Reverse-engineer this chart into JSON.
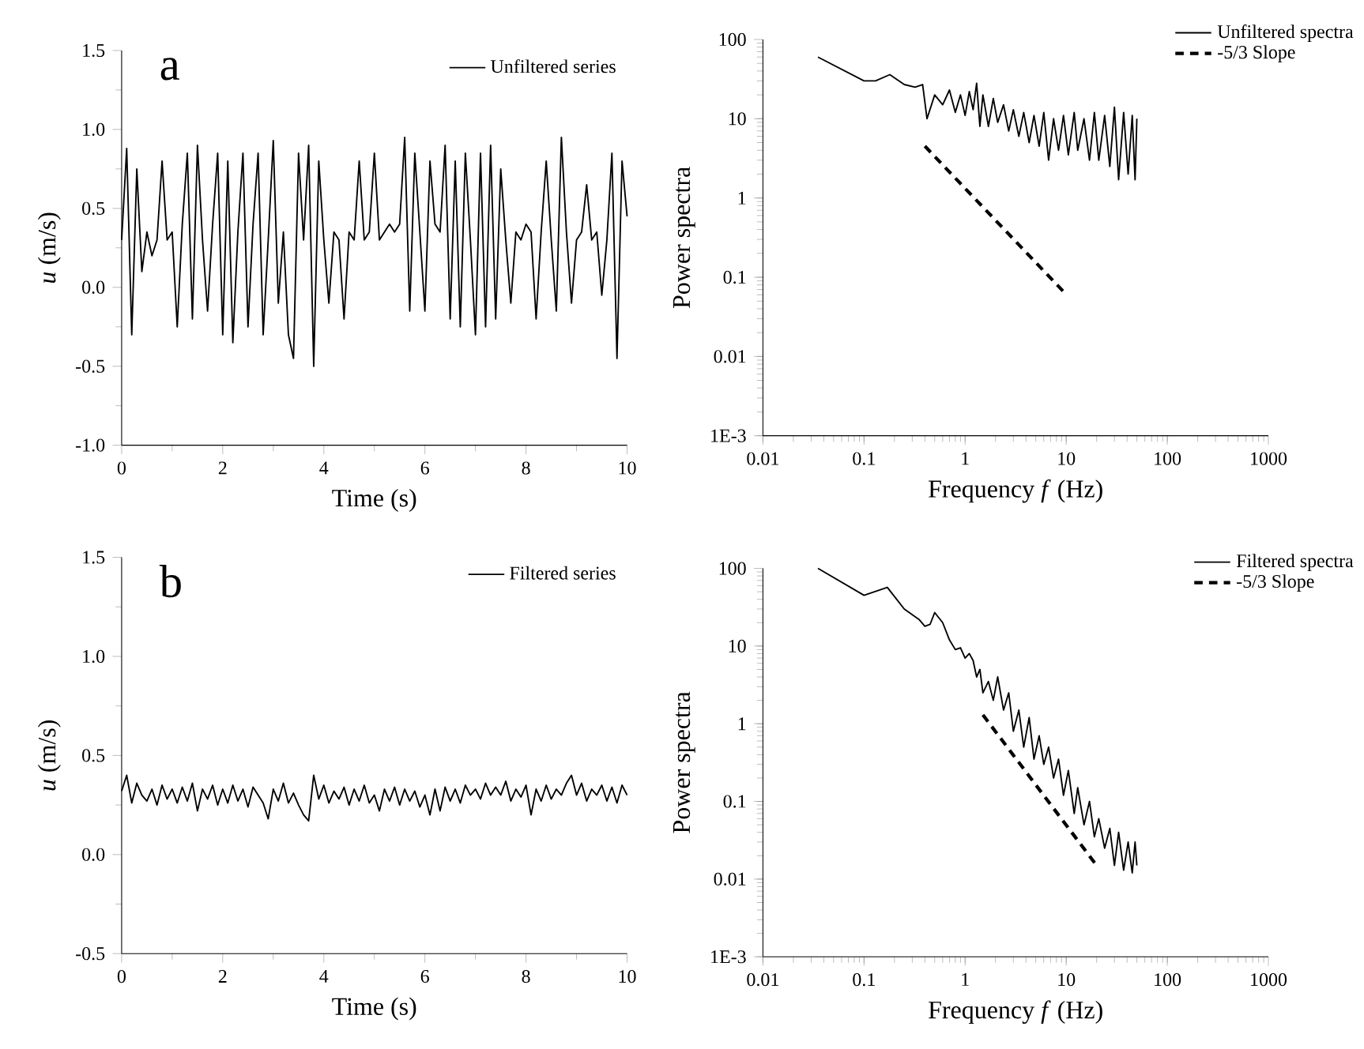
{
  "chart_data": [
    {
      "type": "line",
      "xlabel": "Time (s)",
      "ylabel": "*u* (m/s)",
      "annotations": [
        "a"
      ],
      "legend": "top right",
      "xlim": [
        0,
        10
      ],
      "ylim": [
        -1,
        1.5
      ],
      "xticks": [
        0,
        2,
        4,
        6,
        8,
        10
      ],
      "yticks": [
        {
          "value": -1,
          "label": "-1.0"
        },
        {
          "value": -0.5,
          "label": "-0.5"
        },
        {
          "value": 0,
          "label": "0.0"
        },
        {
          "value": 0.5,
          "label": "0.5"
        },
        {
          "value": 1,
          "label": "1.0"
        },
        {
          "value": 1.5,
          "label": "1.5"
        }
      ],
      "x": [
        0,
        0.1,
        0.2,
        0.3,
        0.4,
        0.5,
        0.6,
        0.7,
        0.8,
        0.9,
        1,
        1.1,
        1.2,
        1.3,
        1.4,
        1.5,
        1.6,
        1.7,
        1.8,
        1.9,
        2,
        2.1,
        2.2,
        2.3,
        2.4,
        2.5,
        2.6,
        2.7,
        2.8,
        2.9,
        3,
        3.1,
        3.2,
        3.3,
        3.4,
        3.5,
        3.6,
        3.7,
        3.8,
        3.9,
        4,
        4.1,
        4.2,
        4.3,
        4.4,
        4.5,
        4.6,
        4.7,
        4.8,
        4.9,
        5,
        5.1,
        5.2,
        5.3,
        5.4,
        5.5,
        5.6,
        5.7,
        5.8,
        5.9,
        6,
        6.1,
        6.2,
        6.3,
        6.4,
        6.5,
        6.6,
        6.7,
        6.8,
        6.9,
        7,
        7.1,
        7.2,
        7.3,
        7.4,
        7.5,
        7.6,
        7.7,
        7.8,
        7.9,
        8,
        8.1,
        8.2,
        8.3,
        8.4,
        8.5,
        8.6,
        8.7,
        8.8,
        8.9,
        9,
        9.1,
        9.2,
        9.3,
        9.4,
        9.5,
        9.6,
        9.7,
        9.8,
        9.9,
        10
      ],
      "series": [
        {
          "name": "Unfiltered series",
          "color": "#000000",
          "values": [
            0.3,
            0.88,
            -0.3,
            0.75,
            0.1,
            0.35,
            0.2,
            0.3,
            0.8,
            0.3,
            0.35,
            -0.25,
            0.4,
            0.85,
            -0.2,
            0.9,
            0.3,
            -0.15,
            0.4,
            0.85,
            -0.3,
            0.8,
            -0.35,
            0.35,
            0.85,
            -0.25,
            0.4,
            0.85,
            -0.3,
            0.3,
            0.93,
            -0.1,
            0.35,
            -0.3,
            -0.45,
            0.85,
            0.3,
            0.9,
            -0.5,
            0.8,
            0.3,
            -0.1,
            0.35,
            0.3,
            -0.2,
            0.35,
            0.3,
            0.8,
            0.3,
            0.35,
            0.85,
            0.3,
            0.35,
            0.4,
            0.35,
            0.4,
            0.95,
            -0.15,
            0.85,
            0.35,
            -0.15,
            0.8,
            0.4,
            0.35,
            0.9,
            -0.2,
            0.8,
            -0.25,
            0.85,
            0.3,
            -0.3,
            0.85,
            -0.25,
            0.9,
            -0.2,
            0.75,
            0.3,
            -0.1,
            0.35,
            0.3,
            0.4,
            0.35,
            -0.2,
            0.35,
            0.8,
            0.3,
            -0.15,
            0.95,
            0.35,
            -0.1,
            0.3,
            0.35,
            0.65,
            0.3,
            0.35,
            -0.05,
            0.3,
            0.85,
            -0.45,
            0.8,
            0.45
          ]
        }
      ]
    },
    {
      "type": "line",
      "xlabel": "Frequency *f*  (Hz)",
      "ylabel": "Power spectra",
      "legend": "top right",
      "log": "xy",
      "xlim": [
        0.01,
        1000
      ],
      "ylim": [
        0.001,
        100
      ],
      "xticks": [
        0.01,
        0.1,
        1,
        10,
        100,
        1000
      ],
      "yticks": [
        {
          "value": 0.001,
          "label": "1E-3"
        },
        0.01,
        0.1,
        1,
        10,
        100
      ],
      "series": [
        {
          "name": "Unfiltered spectra",
          "color": "#000000",
          "x": [
            0.035,
            0.1,
            0.13,
            0.18,
            0.25,
            0.32,
            0.38,
            0.42,
            0.5,
            0.6,
            0.7,
            0.8,
            0.9,
            1.0,
            1.1,
            1.2,
            1.3,
            1.4,
            1.5,
            1.7,
            1.9,
            2.1,
            2.4,
            2.7,
            3.0,
            3.4,
            3.8,
            4.3,
            4.8,
            5.4,
            6,
            6.7,
            7.5,
            8.4,
            9.4,
            10.5,
            12,
            13,
            15,
            17,
            19,
            21,
            24,
            27,
            30,
            33,
            37,
            41,
            45,
            48,
            50
          ],
          "values": [
            60,
            30,
            30,
            36,
            27,
            25,
            27,
            10,
            20,
            15,
            23,
            12,
            20,
            11,
            22,
            13,
            28,
            8,
            20,
            8,
            18,
            9,
            15,
            7,
            13,
            6,
            12,
            5,
            11,
            4.5,
            12,
            3,
            10,
            4,
            11,
            3.5,
            12,
            4,
            10,
            3,
            12,
            3,
            11,
            2.5,
            14,
            1.7,
            12,
            2,
            11,
            1.7,
            10
          ]
        },
        {
          "name": "-5/3 Slope",
          "color": "#000000",
          "line_style": "dashed",
          "x": [
            0.4,
            9.5
          ],
          "values": [
            4.5,
            0.065
          ]
        }
      ]
    },
    {
      "type": "line",
      "xlabel": "Time (s)",
      "ylabel": "*u* (m/s)",
      "annotations": [
        "b"
      ],
      "legend": "top right",
      "xlim": [
        0,
        10
      ],
      "ylim": [
        -0.5,
        1.5
      ],
      "xticks": [
        0,
        2,
        4,
        6,
        8,
        10
      ],
      "yticks": [
        {
          "value": -0.5,
          "label": "-0.5"
        },
        {
          "value": 0,
          "label": "0.0"
        },
        {
          "value": 0.5,
          "label": "0.5"
        },
        {
          "value": 1,
          "label": "1.0"
        },
        {
          "value": 1.5,
          "label": "1.5"
        }
      ],
      "x": [
        0,
        0.1,
        0.2,
        0.3,
        0.4,
        0.5,
        0.6,
        0.7,
        0.8,
        0.9,
        1,
        1.1,
        1.2,
        1.3,
        1.4,
        1.5,
        1.6,
        1.7,
        1.8,
        1.9,
        2,
        2.1,
        2.2,
        2.3,
        2.4,
        2.5,
        2.6,
        2.7,
        2.8,
        2.9,
        3,
        3.1,
        3.2,
        3.3,
        3.4,
        3.5,
        3.6,
        3.7,
        3.8,
        3.9,
        4,
        4.1,
        4.2,
        4.3,
        4.4,
        4.5,
        4.6,
        4.7,
        4.8,
        4.9,
        5,
        5.1,
        5.2,
        5.3,
        5.4,
        5.5,
        5.6,
        5.7,
        5.8,
        5.9,
        6,
        6.1,
        6.2,
        6.3,
        6.4,
        6.5,
        6.6,
        6.7,
        6.8,
        6.9,
        7,
        7.1,
        7.2,
        7.3,
        7.4,
        7.5,
        7.6,
        7.7,
        7.8,
        7.9,
        8,
        8.1,
        8.2,
        8.3,
        8.4,
        8.5,
        8.6,
        8.7,
        8.8,
        8.9,
        9,
        9.1,
        9.2,
        9.3,
        9.4,
        9.5,
        9.6,
        9.7,
        9.8,
        9.9,
        10
      ],
      "series": [
        {
          "name": "Filtered series",
          "color": "#000000",
          "values": [
            0.32,
            0.4,
            0.26,
            0.36,
            0.3,
            0.27,
            0.33,
            0.25,
            0.35,
            0.28,
            0.33,
            0.26,
            0.34,
            0.27,
            0.36,
            0.22,
            0.33,
            0.28,
            0.35,
            0.25,
            0.33,
            0.26,
            0.35,
            0.27,
            0.33,
            0.24,
            0.34,
            0.3,
            0.26,
            0.18,
            0.33,
            0.27,
            0.36,
            0.26,
            0.31,
            0.25,
            0.2,
            0.17,
            0.4,
            0.28,
            0.35,
            0.26,
            0.32,
            0.28,
            0.34,
            0.25,
            0.33,
            0.27,
            0.35,
            0.26,
            0.3,
            0.22,
            0.33,
            0.27,
            0.34,
            0.25,
            0.33,
            0.27,
            0.32,
            0.24,
            0.3,
            0.2,
            0.33,
            0.22,
            0.34,
            0.27,
            0.33,
            0.26,
            0.35,
            0.3,
            0.33,
            0.28,
            0.36,
            0.3,
            0.34,
            0.3,
            0.37,
            0.27,
            0.33,
            0.29,
            0.35,
            0.2,
            0.33,
            0.27,
            0.35,
            0.28,
            0.33,
            0.3,
            0.36,
            0.4,
            0.3,
            0.36,
            0.27,
            0.33,
            0.3,
            0.35,
            0.27,
            0.34,
            0.26,
            0.35,
            0.3
          ]
        }
      ]
    },
    {
      "type": "line",
      "xlabel": "Frequency *f*  (Hz)",
      "ylabel": "Power spectra",
      "legend": "top right",
      "log": "xy",
      "xlim": [
        0.01,
        1000
      ],
      "ylim": [
        0.001,
        100
      ],
      "xticks": [
        0.01,
        0.1,
        1,
        10,
        100,
        1000
      ],
      "yticks": [
        {
          "value": 0.001,
          "label": "1E-3"
        },
        0.01,
        0.1,
        1,
        10,
        100
      ],
      "series": [
        {
          "name": "Filtered spectra",
          "color": "#000000",
          "x": [
            0.035,
            0.1,
            0.17,
            0.25,
            0.35,
            0.4,
            0.45,
            0.5,
            0.6,
            0.7,
            0.8,
            0.9,
            1.0,
            1.1,
            1.2,
            1.3,
            1.4,
            1.5,
            1.7,
            1.9,
            2.1,
            2.4,
            2.7,
            3.0,
            3.4,
            3.8,
            4.3,
            4.8,
            5.4,
            6,
            6.7,
            7.5,
            8.4,
            9.4,
            10.5,
            12,
            13,
            15,
            17,
            19,
            21,
            24,
            27,
            30,
            33,
            37,
            41,
            45,
            48,
            50
          ],
          "values": [
            100,
            45,
            57,
            30,
            22,
            18,
            19,
            27,
            20,
            12,
            9,
            9.5,
            7,
            8,
            6.5,
            4,
            5,
            2.5,
            3.5,
            2,
            4,
            1.5,
            2.5,
            0.8,
            1.5,
            0.5,
            1.2,
            0.35,
            0.7,
            0.3,
            0.5,
            0.2,
            0.35,
            0.12,
            0.25,
            0.07,
            0.15,
            0.05,
            0.1,
            0.035,
            0.06,
            0.025,
            0.045,
            0.015,
            0.04,
            0.013,
            0.03,
            0.012,
            0.03,
            0.015
          ]
        },
        {
          "name": "-5/3 Slope",
          "color": "#000000",
          "line_style": "dashed",
          "x": [
            1.5,
            20
          ],
          "values": [
            1.3,
            0.015
          ]
        }
      ]
    }
  ]
}
